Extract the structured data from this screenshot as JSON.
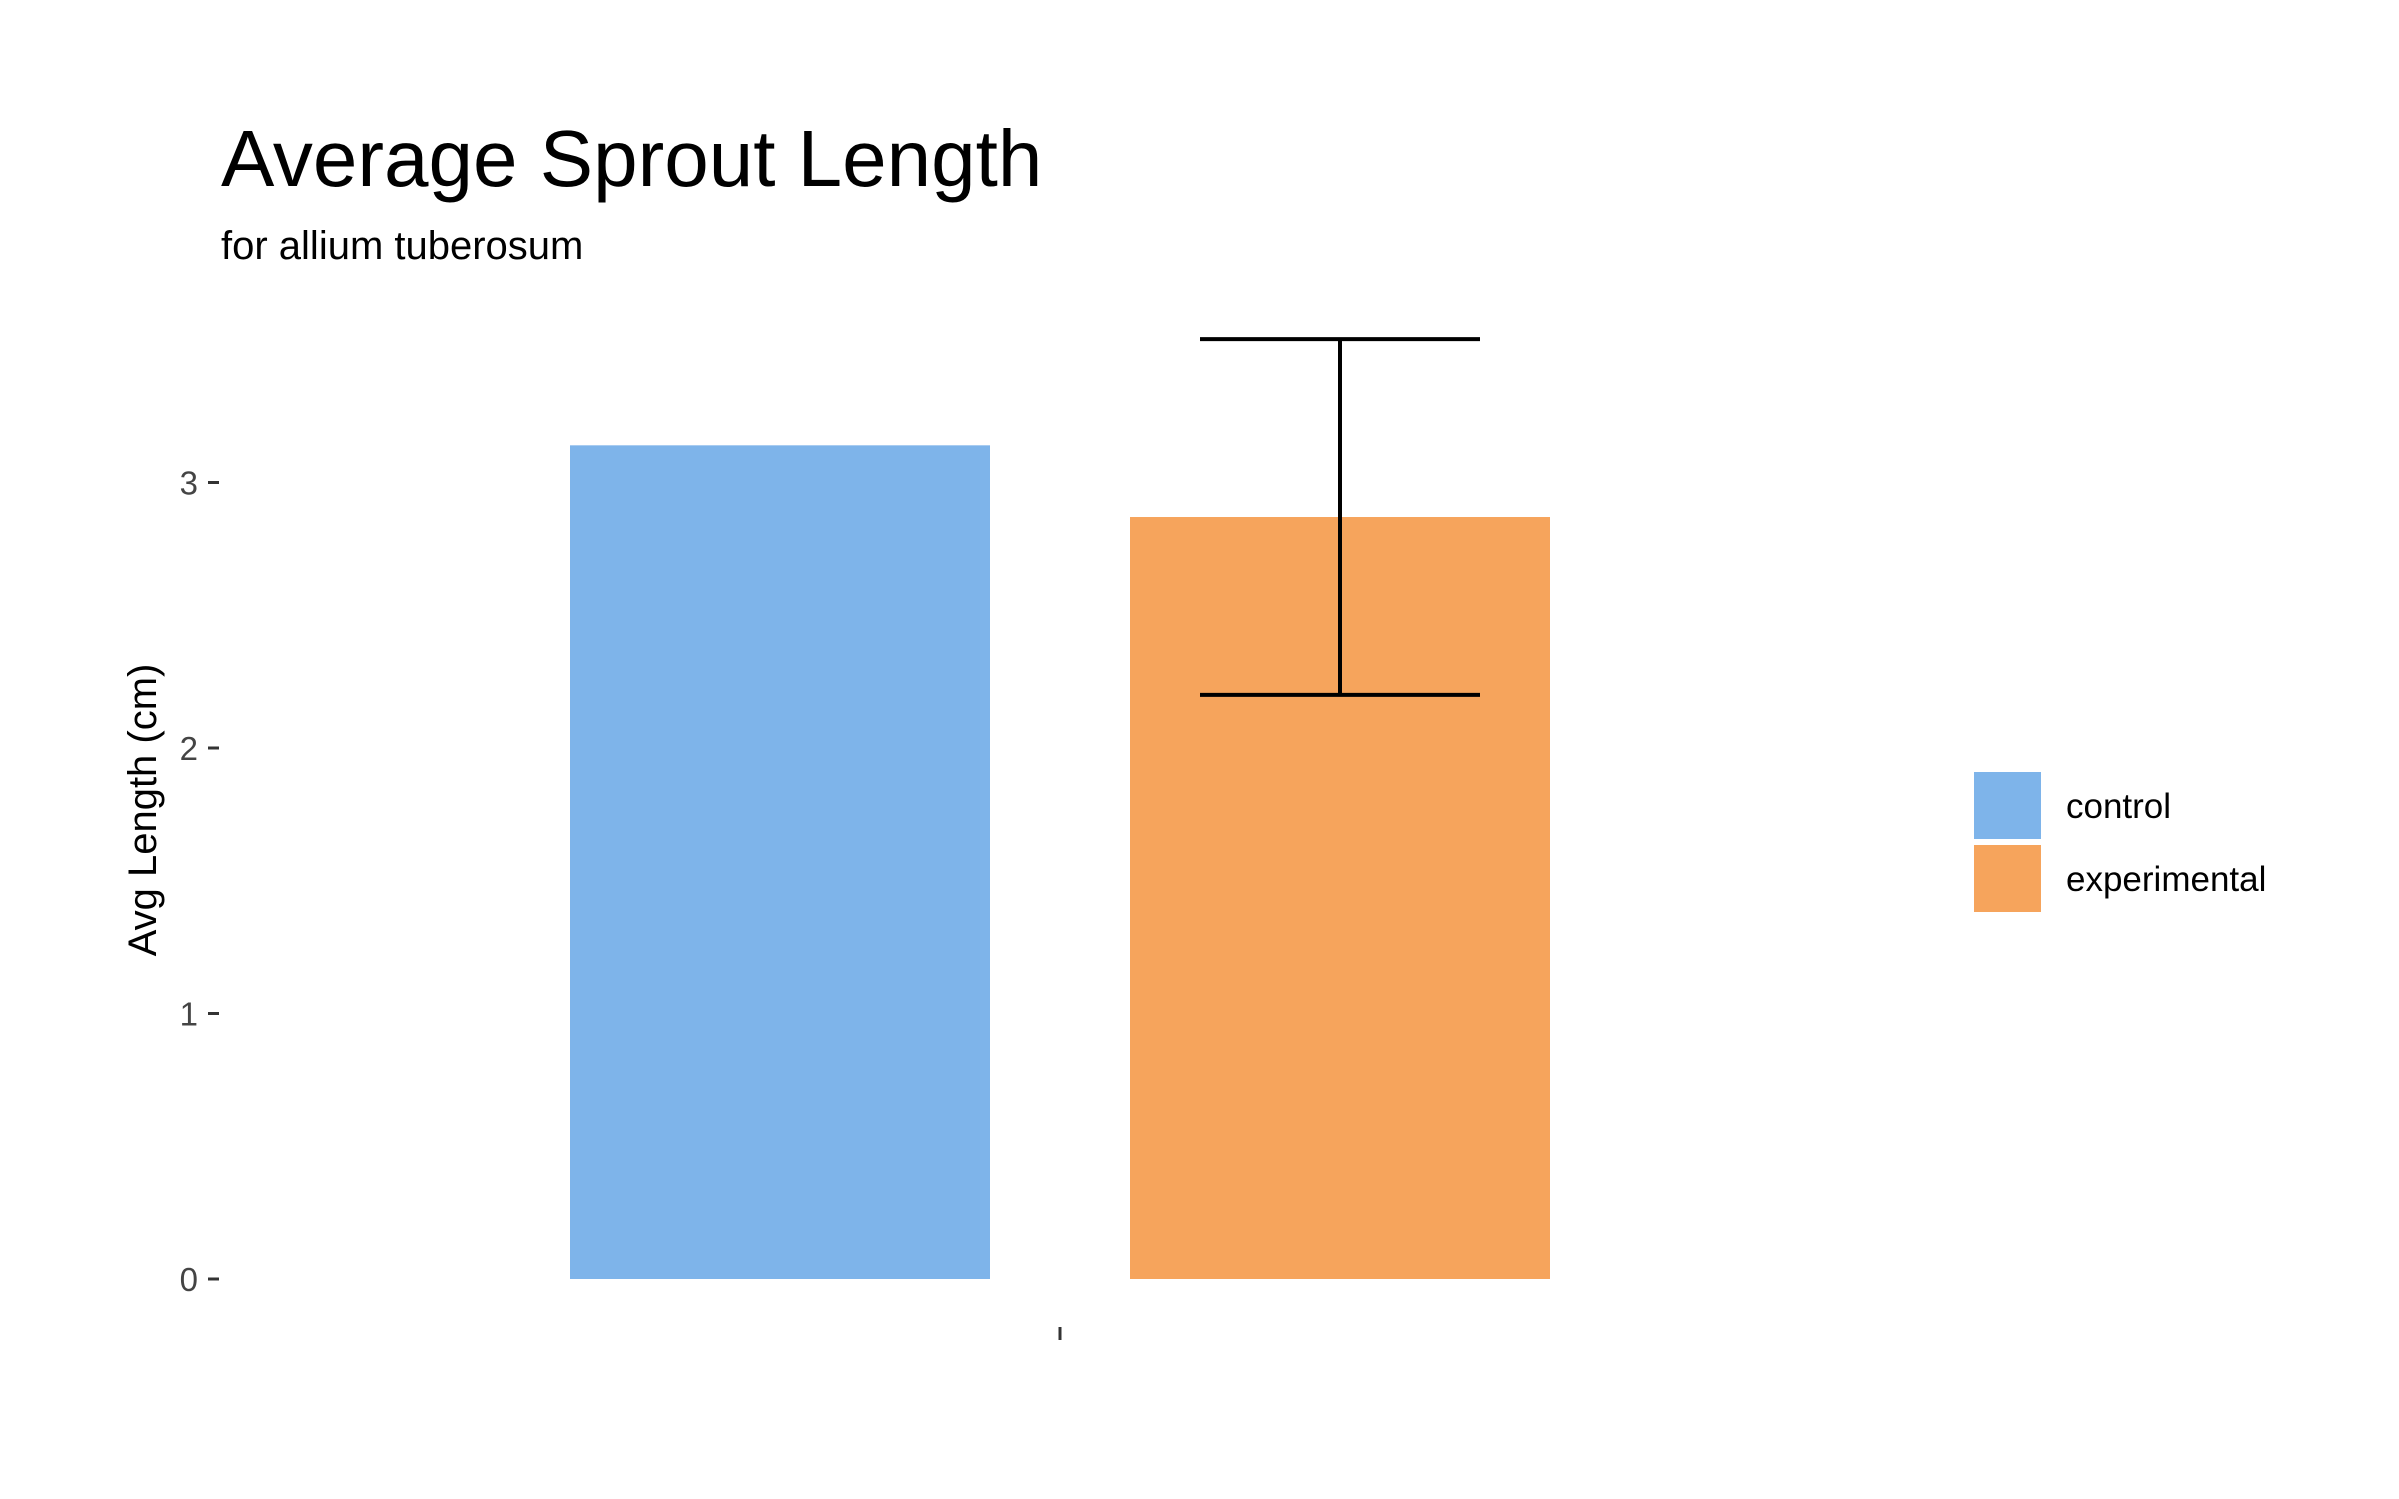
{
  "chart_data": {
    "type": "bar",
    "title": "Average Sprout Length",
    "subtitle": "for  allium tuberosum",
    "xlabel": "",
    "ylabel": "Avg Length (cm)",
    "categories": [
      ""
    ],
    "series": [
      {
        "name": "control",
        "values": [
          3.14
        ],
        "color": "#7EB4EA"
      },
      {
        "name": "experimental",
        "values": [
          2.87
        ],
        "color": "#F6A45C",
        "error": {
          "low": 2.2,
          "high": 3.54
        }
      }
    ],
    "ylim": [
      0,
      3.5
    ],
    "yticks": [
      0,
      1,
      2,
      3
    ],
    "grid": false,
    "legend": {
      "placement": "right"
    }
  }
}
